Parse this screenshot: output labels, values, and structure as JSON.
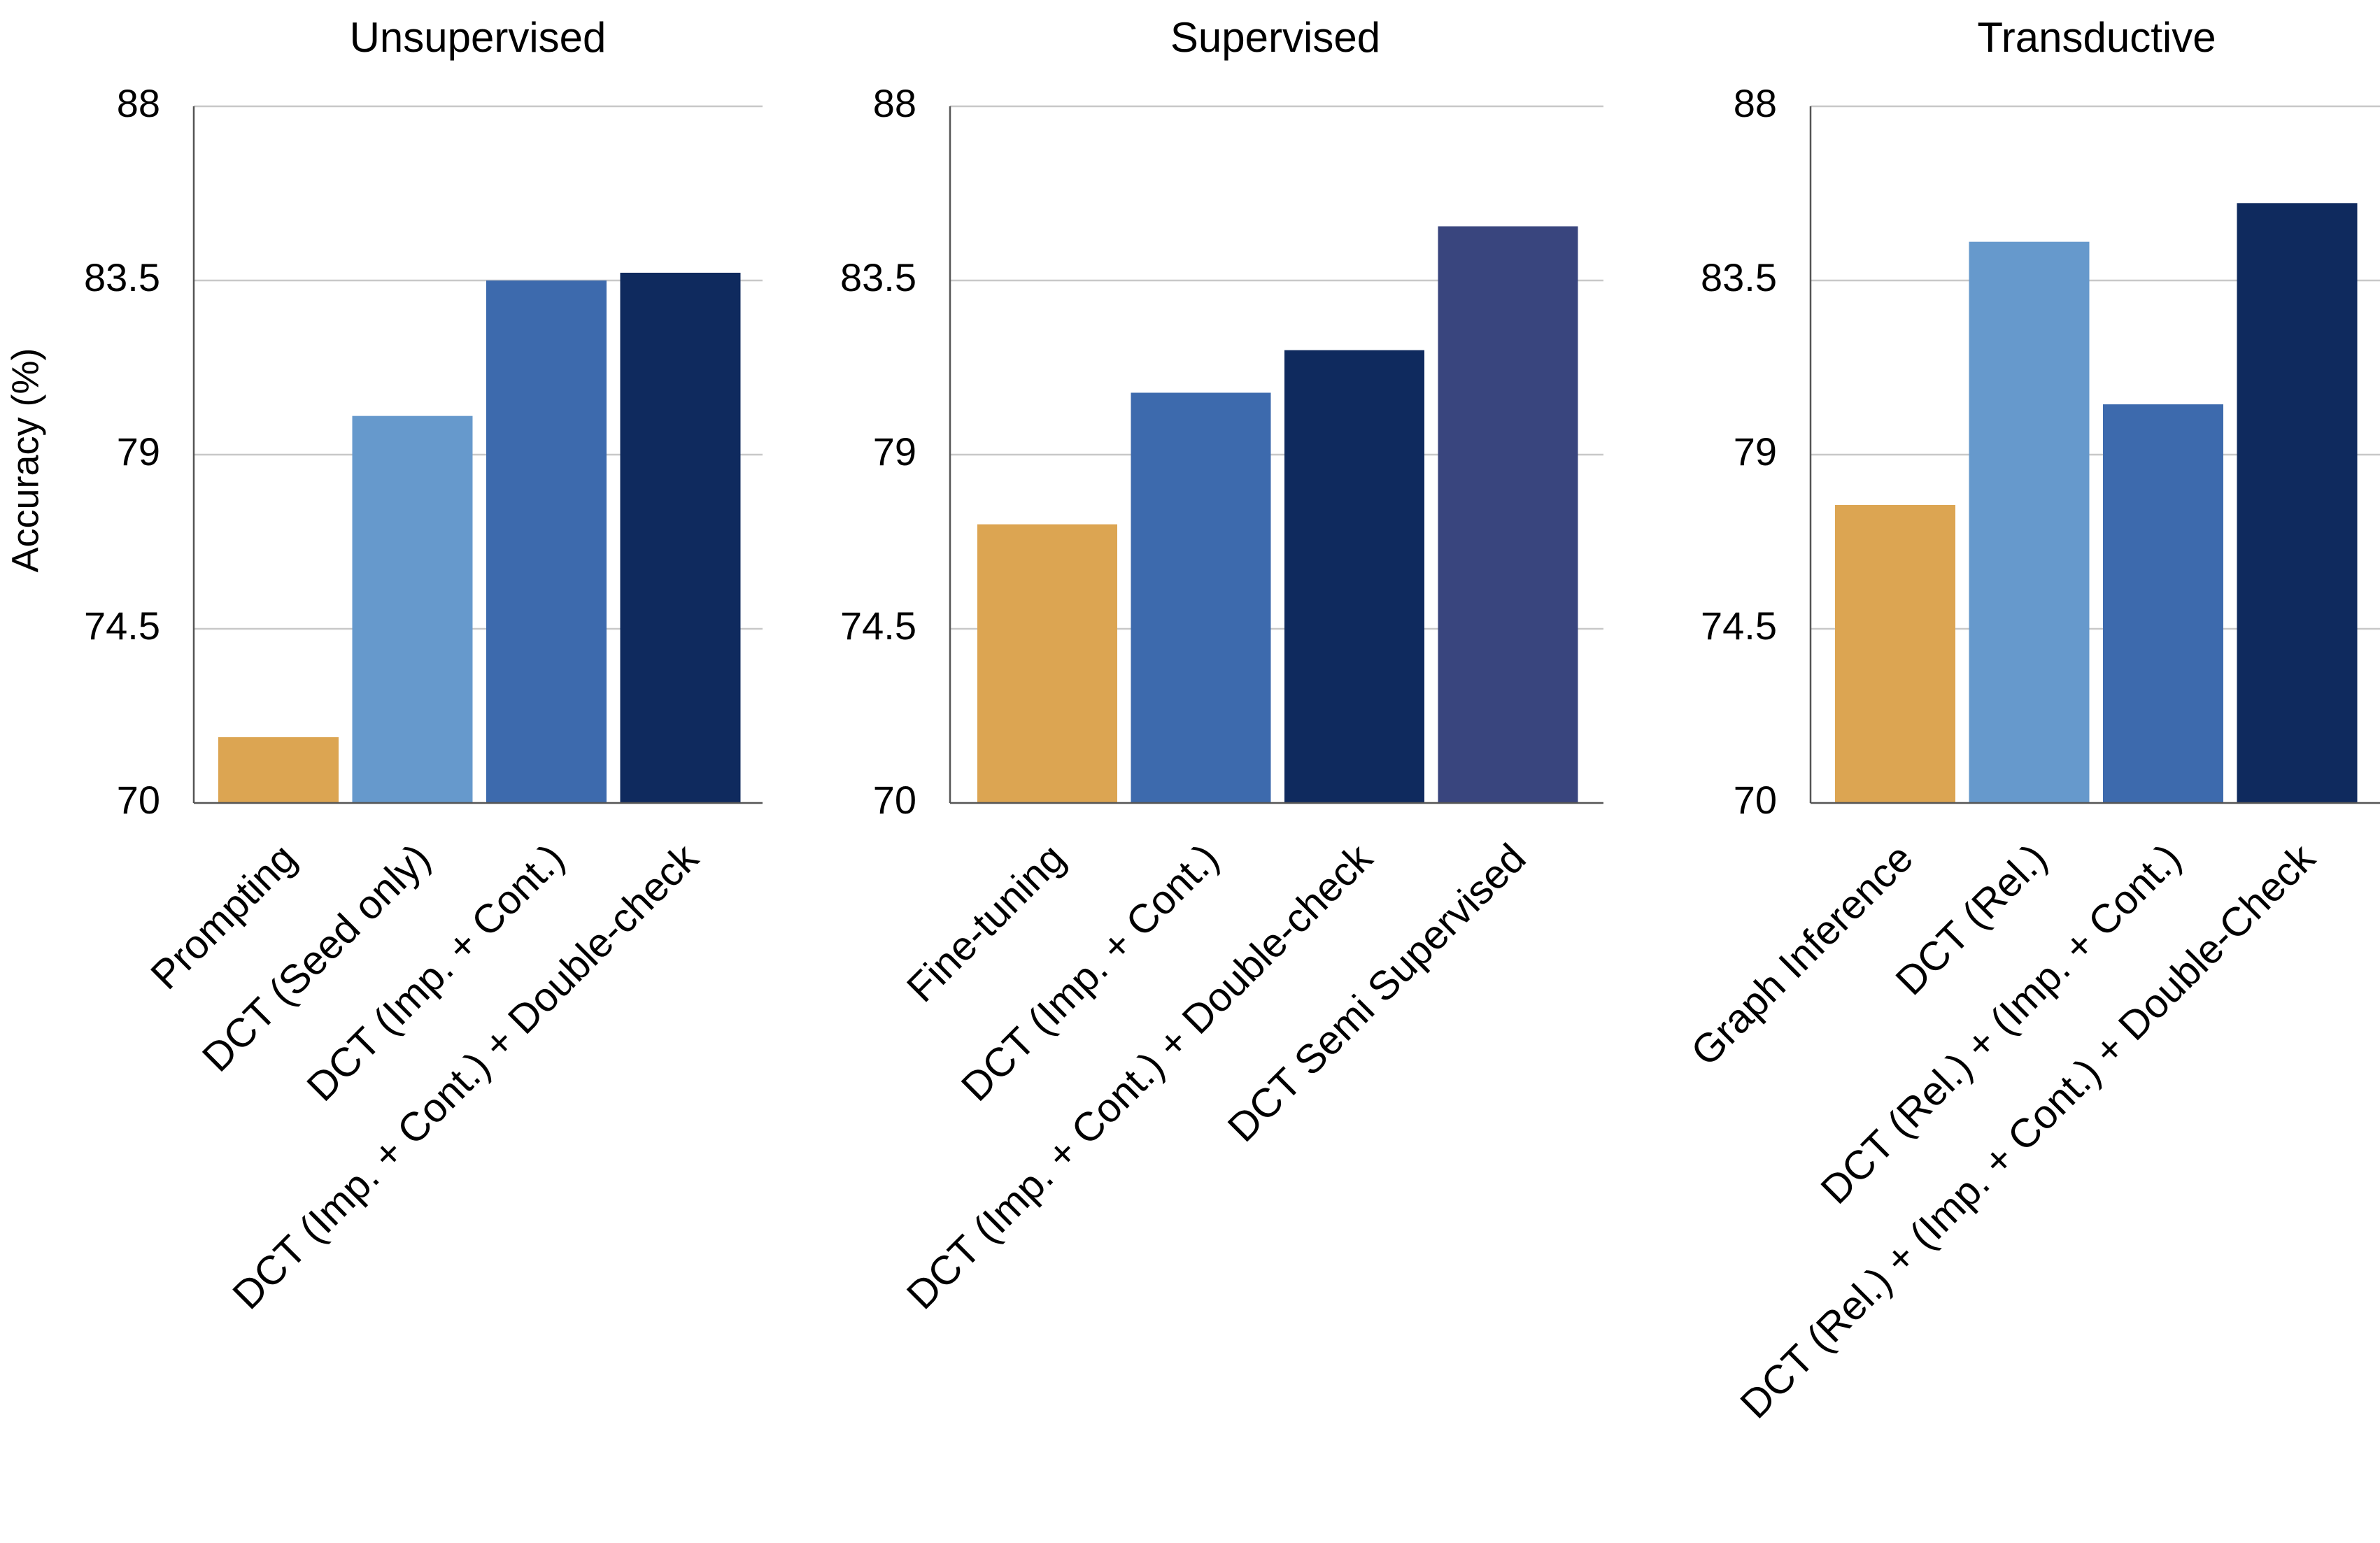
{
  "colors": {
    "gold": "#dca552",
    "light_blue": "#6699cc",
    "mid_blue": "#3d6aad",
    "navy": "#0f2a5e",
    "slate_navy": "#39457e"
  },
  "chart_data": [
    {
      "type": "bar",
      "title": "Unsupervised",
      "ylabel": "Accuracy (%)",
      "ylim": [
        70,
        88
      ],
      "yticks": [
        "70",
        "74.5",
        "79",
        "83.5",
        "88"
      ],
      "grid": true,
      "categories": [
        "Prompting",
        "DCT (Seed only)",
        "DCT (Imp. + Cont.)",
        "DCT (Imp. + Cont.) + Double-check"
      ],
      "values": [
        71.7,
        80.0,
        83.5,
        83.7
      ],
      "bar_colors": [
        "gold",
        "light_blue",
        "mid_blue",
        "navy"
      ]
    },
    {
      "type": "bar",
      "title": "Supervised",
      "ylabel": "",
      "ylim": [
        70,
        88
      ],
      "yticks": [
        "70",
        "74.5",
        "79",
        "83.5",
        "88"
      ],
      "grid": true,
      "categories": [
        "Fine-tuning",
        "DCT (Imp. + Cont.)",
        "DCT (Imp. + Cont.) + Double-check",
        "DCT Semi Supervised"
      ],
      "values": [
        77.2,
        80.6,
        81.7,
        84.9
      ],
      "bar_colors": [
        "gold",
        "mid_blue",
        "navy",
        "slate_navy"
      ]
    },
    {
      "type": "bar",
      "title": "Transductive",
      "ylabel": "",
      "ylim": [
        70,
        88
      ],
      "yticks": [
        "70",
        "74.5",
        "79",
        "83.5",
        "88"
      ],
      "grid": true,
      "categories": [
        "Graph Inference",
        "DCT (Rel.)",
        "DCT (Rel.) + (Imp. + Cont.)",
        "DCT (Rel.) + (Imp. + Cont.) + Double-Check"
      ],
      "values": [
        77.7,
        84.5,
        80.3,
        85.5
      ],
      "bar_colors": [
        "gold",
        "light_blue",
        "mid_blue",
        "navy"
      ]
    }
  ]
}
